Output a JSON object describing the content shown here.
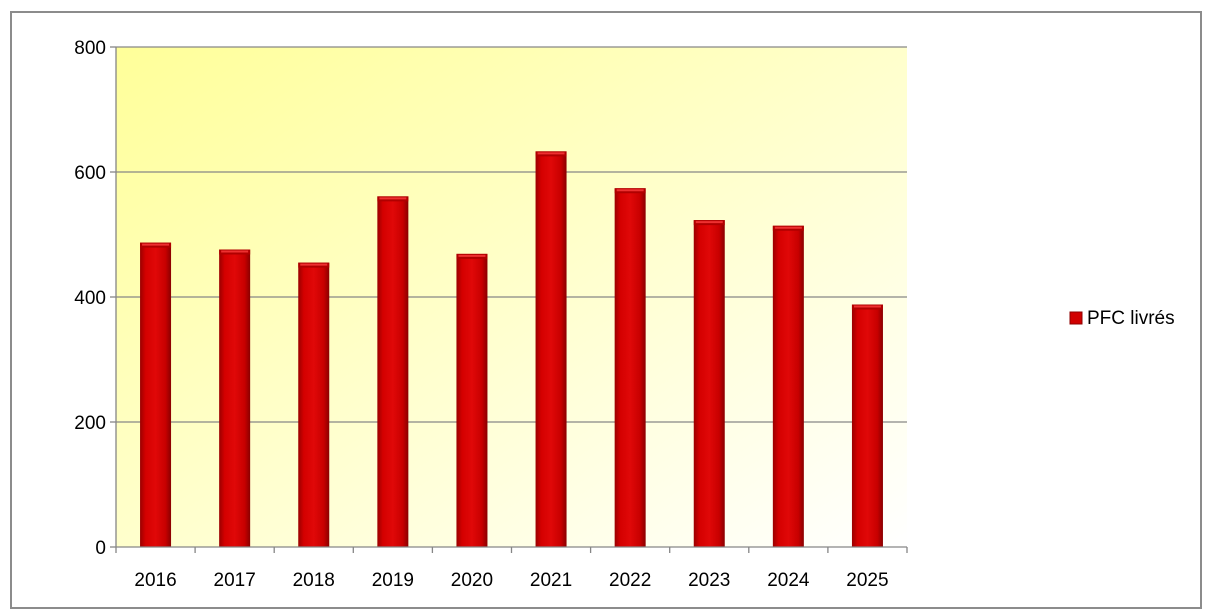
{
  "chart_data": {
    "type": "bar",
    "categories": [
      "2016",
      "2017",
      "2018",
      "2019",
      "2020",
      "2021",
      "2022",
      "2023",
      "2024",
      "2025"
    ],
    "series": [
      {
        "name": "PFC livrés",
        "values": [
          487,
          476,
          455,
          561,
          469,
          633,
          574,
          523,
          514,
          388
        ]
      }
    ],
    "ylim": [
      0,
      800
    ],
    "yticks": [
      "0",
      "200",
      "400",
      "600",
      "800"
    ],
    "grid": true,
    "legend": "right",
    "colors": {
      "bar": "#d10000",
      "bar_dark": "#8e0000",
      "plot_bg_top": "#ffff99",
      "plot_bg_bottom": "#ffffff",
      "grid": "#868686"
    }
  }
}
